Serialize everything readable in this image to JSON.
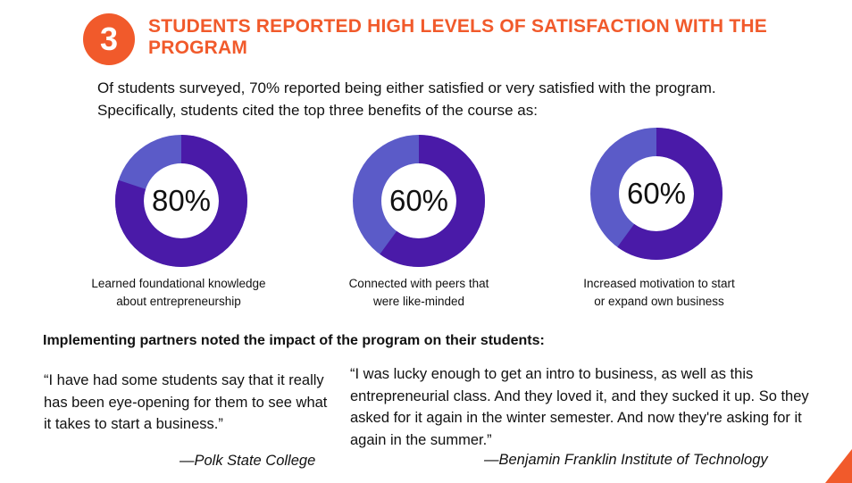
{
  "section": {
    "number": "3",
    "title": "STUDENTS REPORTED HIGH LEVELS OF SATISFACTION WITH THE PROGRAM",
    "intro": "Of students surveyed, 70% reported being either satisfied or very satisfied with the program. Specifically, students cited the top three benefits of the course as:"
  },
  "benefits": [
    {
      "percent_label": "80%",
      "value": 80,
      "caption_line1": "Learned foundational knowledge",
      "caption_line2": "about entrepreneurship"
    },
    {
      "percent_label": "60%",
      "value": 60,
      "caption_line1": "Connected with peers that",
      "caption_line2": "were like-minded"
    },
    {
      "percent_label": "60%",
      "value": 60,
      "caption_line1": "Increased motivation to start",
      "caption_line2": "or expand own business"
    }
  ],
  "partners_heading": "Implementing partners noted the impact of the program on their students:",
  "quotes": [
    {
      "text": "“I have had some students say that it really has been eye-opening for them to see what it takes to start a business.”",
      "attribution": "—Polk State College"
    },
    {
      "text": "“I was lucky enough to get an intro to business, as well as this entrepreneurial class. And they loved it, and they sucked it up. So they asked for it again in the winter semester. And now they're asking for it again in the summer.”",
      "attribution": "—Benjamin Franklin Institute of Technology"
    }
  ],
  "colors": {
    "accent": "#f15a2b",
    "ring_filled": "#4a1aa8",
    "ring_remaining": "#5b5bc8"
  }
}
